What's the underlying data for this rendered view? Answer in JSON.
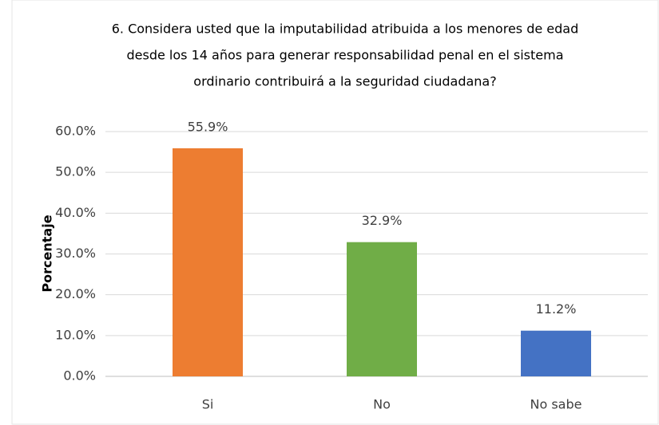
{
  "chart_data": {
    "type": "bar",
    "title": [
      "6. Considera usted que la imputabilidad atribuida a los menores de edad",
      "desde los 14 años para generar responsabilidad penal en el sistema",
      "ordinario contribuirá a la seguridad ciudadana?"
    ],
    "y_label": "Porcentaje",
    "categories": [
      "Si",
      "No",
      "No sabe"
    ],
    "values": [
      55.9,
      32.9,
      11.2
    ],
    "value_labels": [
      "55.9%",
      "32.9%",
      "11.2%"
    ],
    "colors": [
      "#ed7d31",
      "#70ad47",
      "#4472c4"
    ],
    "ylim": [
      0,
      60
    ],
    "yticks": [
      {
        "value": 0,
        "label": "0.0%"
      },
      {
        "value": 10,
        "label": "10.0%"
      },
      {
        "value": 20,
        "label": "20.0%"
      },
      {
        "value": 30,
        "label": "30.0%"
      },
      {
        "value": 40,
        "label": "40.0%"
      },
      {
        "value": 50,
        "label": "50.0%"
      },
      {
        "value": 60,
        "label": "60.0%"
      }
    ],
    "grid": true
  }
}
